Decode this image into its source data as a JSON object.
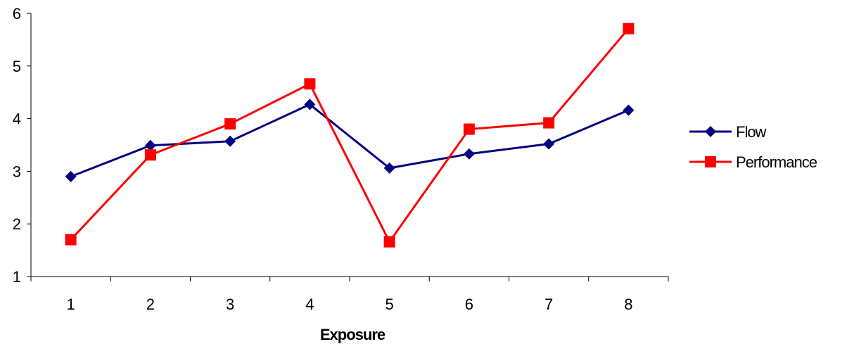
{
  "chart_data": {
    "type": "line",
    "categories": [
      "1",
      "2",
      "3",
      "4",
      "5",
      "6",
      "7",
      "8"
    ],
    "xlabel": "Exposure",
    "ylabel": "",
    "ylim": [
      1,
      6
    ],
    "yticks": [
      "1",
      "2",
      "3",
      "4",
      "5",
      "6"
    ],
    "grid": false,
    "legend_position": "right",
    "series": [
      {
        "name": "Flow",
        "color": "#000080",
        "marker": "diamond",
        "values": [
          2.9,
          3.49,
          3.57,
          4.27,
          3.06,
          3.33,
          3.52,
          4.16
        ]
      },
      {
        "name": "Performance",
        "color": "#ff0000",
        "marker": "square",
        "values": [
          1.7,
          3.31,
          3.9,
          4.66,
          1.66,
          3.8,
          3.92,
          5.71
        ]
      }
    ]
  }
}
